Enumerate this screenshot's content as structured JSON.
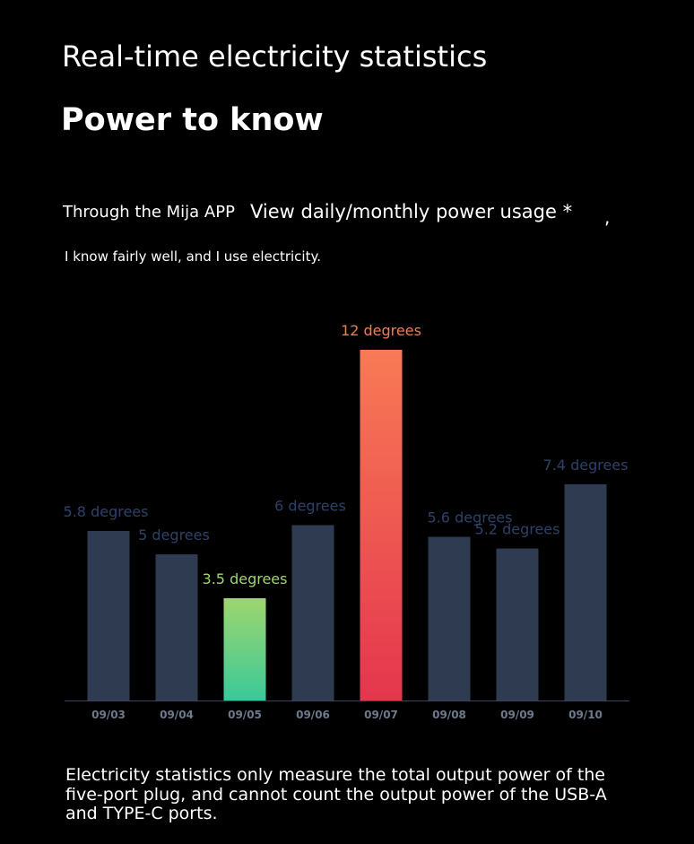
{
  "header": {
    "title": "Real-time electricity statistics",
    "subtitle": "Power to know"
  },
  "intro": {
    "line1_a": "Through the Mija APP",
    "line1_b": "View daily/monthly power usage *",
    "line1_c": ",",
    "line2": "I know fairly well, and I use electricity."
  },
  "chart_data": {
    "type": "bar",
    "categories": [
      "09/03",
      "09/04",
      "09/05",
      "09/06",
      "09/07",
      "09/08",
      "09/09",
      "09/10"
    ],
    "values": [
      5.8,
      5,
      3.5,
      6,
      12,
      5.6,
      5.2,
      7.4
    ],
    "data_labels": [
      "5.8 degrees",
      "5 degrees",
      "3.5 degrees",
      "6 degrees",
      "12 degrees",
      "5.6 degrees",
      "5.2 degrees",
      "7.4 degrees"
    ],
    "highlight_min": {
      "index": 2,
      "colors": [
        "#9ed66e",
        "#3ac99a"
      ]
    },
    "highlight_max": {
      "index": 4,
      "colors": [
        "#f87a55",
        "#e4364e"
      ]
    },
    "bar_color": "#2e3b51",
    "label_color": "#2f4168",
    "tick_color": "#6e7a8c",
    "ylim": [
      0,
      12
    ]
  },
  "footnote": "Electricity statistics only measure the total output power of the five-port plug, and cannot count the output power of the USB-A and TYPE-C ports."
}
